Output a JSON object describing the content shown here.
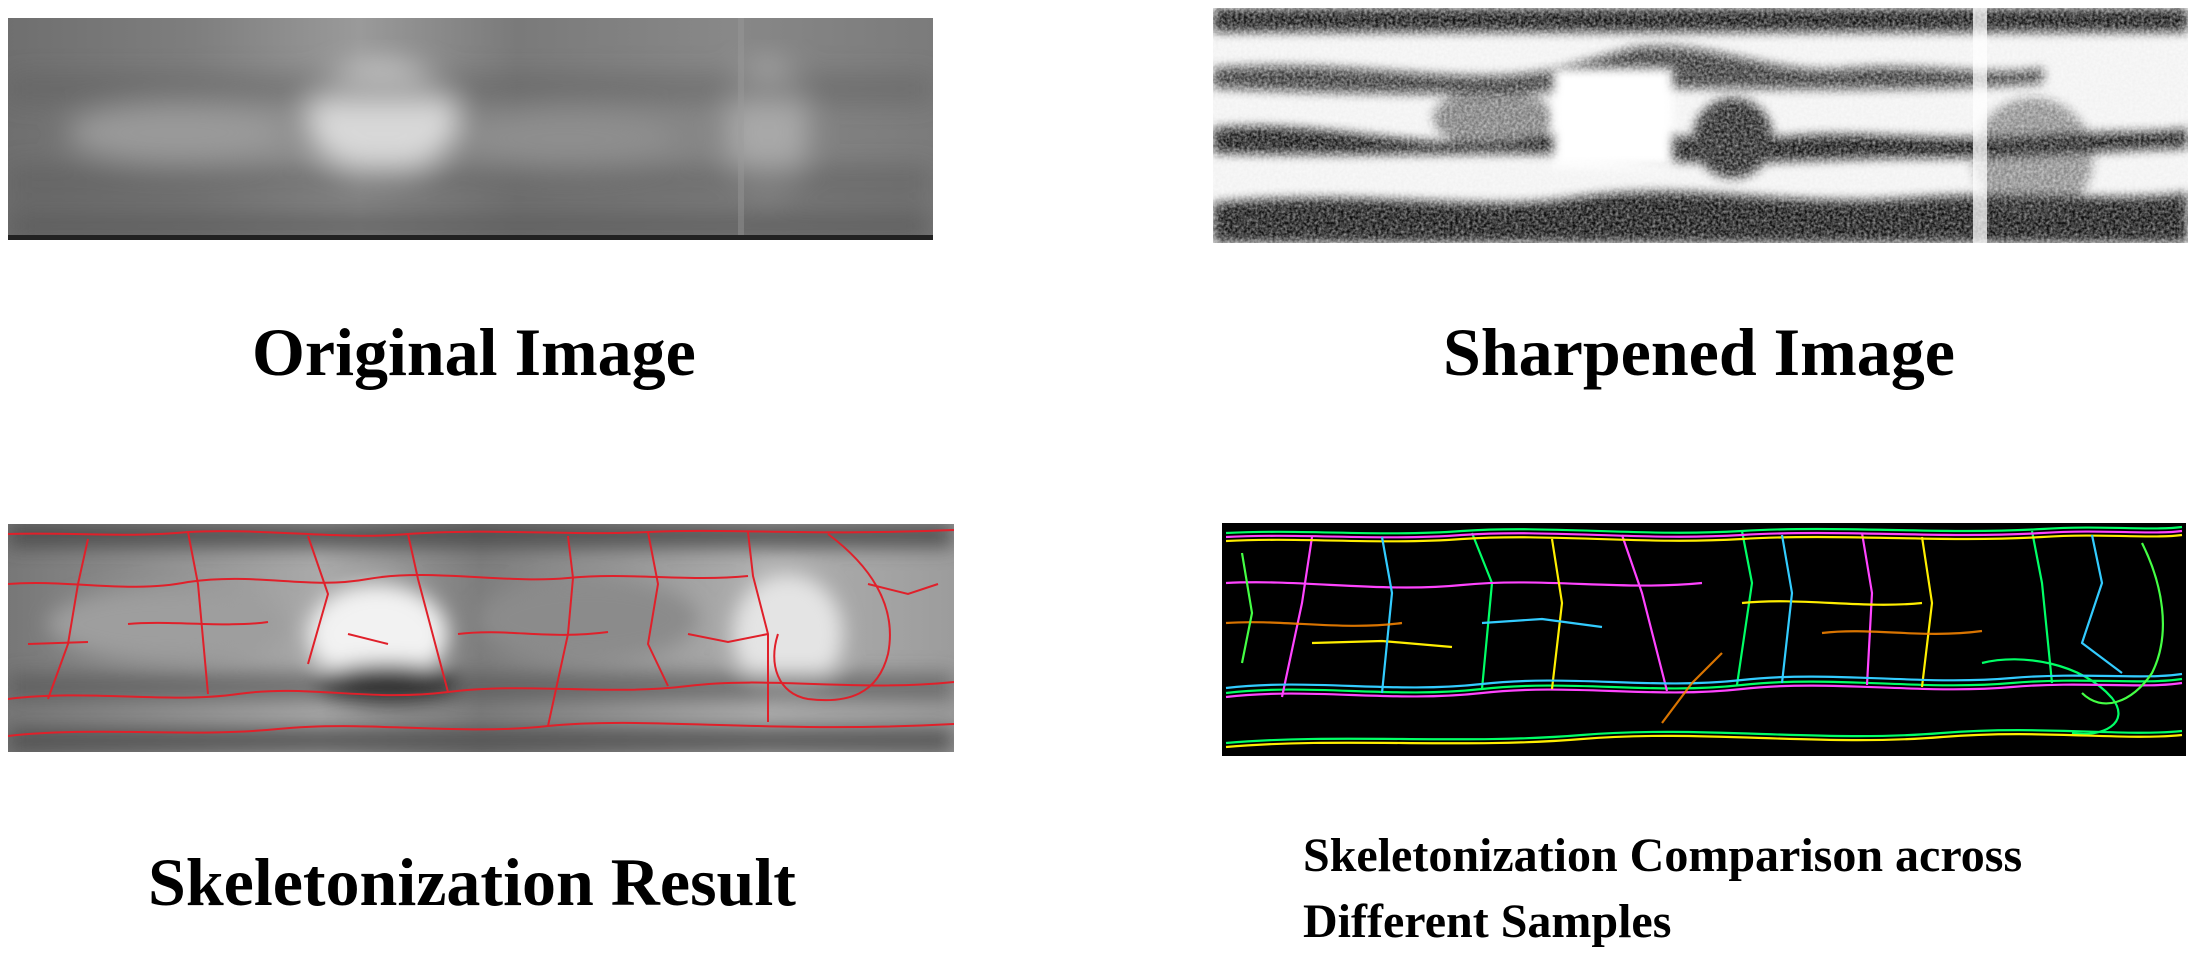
{
  "panels": [
    {
      "id": "original",
      "caption": "Original Image",
      "image": "grayscale-blurred-texture"
    },
    {
      "id": "sharpened",
      "caption": "Sharpened Image",
      "image": "high-contrast-binarized-texture"
    },
    {
      "id": "skeleton",
      "caption": "Skeletonization Result",
      "image": "grayscale-with-red-skeleton-overlay"
    },
    {
      "id": "comparison",
      "caption": "Skeletonization Comparison across Different Samples",
      "image": "multicolor-skeletons-on-black"
    }
  ],
  "colors": {
    "background": "#ffffff",
    "caption_text": "#000000",
    "skeleton_overlay": "#e0202a",
    "comparison_background": "#000000",
    "comparison_lines": [
      "#00ff66",
      "#ff44ff",
      "#ffee00",
      "#33ccff",
      "#ff8800",
      "#44ff44"
    ]
  }
}
